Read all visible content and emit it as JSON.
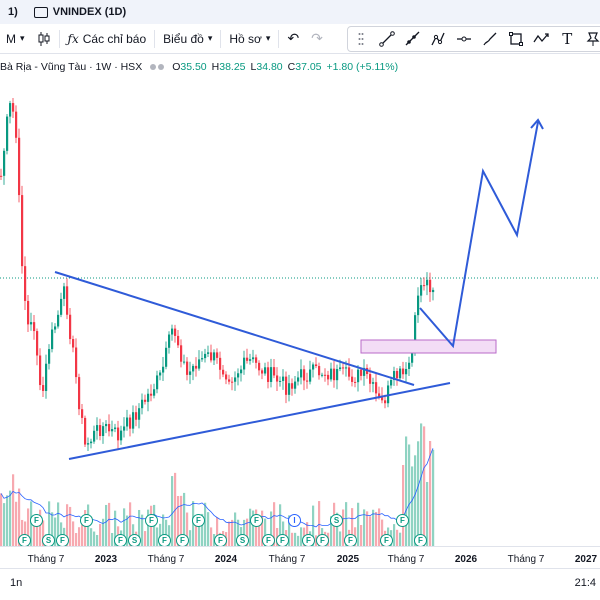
{
  "tabs": [
    {
      "label": "1)"
    },
    {
      "label": "VNINDEX (1D)"
    }
  ],
  "toolbar": {
    "interval": "M",
    "indicators": "Các chỉ báo",
    "chart_type": "Biểu đồ",
    "profile": "Hồ sơ"
  },
  "legend": {
    "symbol": "Bà Rịa - Vũng Tàu · 1W · HSX",
    "o_label": "O",
    "o": "35.50",
    "h_label": "H",
    "h": "38.25",
    "l_label": "L",
    "l": "34.80",
    "c_label": "C",
    "c": "37.05",
    "change": "+1.80 (+5.11%)"
  },
  "xaxis": {
    "labels": [
      {
        "text": "Tháng 7",
        "year": false
      },
      {
        "text": "2023",
        "year": true
      },
      {
        "text": "Tháng 7",
        "year": false
      },
      {
        "text": "2024",
        "year": true
      },
      {
        "text": "Tháng 7",
        "year": false
      },
      {
        "text": "2025",
        "year": true
      },
      {
        "text": "Tháng 7",
        "year": false
      },
      {
        "text": "2026",
        "year": true
      },
      {
        "text": "Tháng 7",
        "year": false
      },
      {
        "text": "2027",
        "year": true
      }
    ]
  },
  "bottom": {
    "range": "1n",
    "time": "21:4"
  },
  "events": [
    "F",
    "F",
    "S",
    "F",
    "F",
    "F",
    "S",
    "F",
    "F",
    "F",
    "F",
    "F",
    "S",
    "F",
    "F",
    "F",
    "I",
    "F",
    "F",
    "S",
    "F",
    "F",
    "F",
    "F"
  ],
  "colors": {
    "up": "#089981",
    "down": "#f23645",
    "trend": "#2f5bd8",
    "zone": "#e4b7ec",
    "ma": "#2962ff",
    "last": "#089981"
  }
}
